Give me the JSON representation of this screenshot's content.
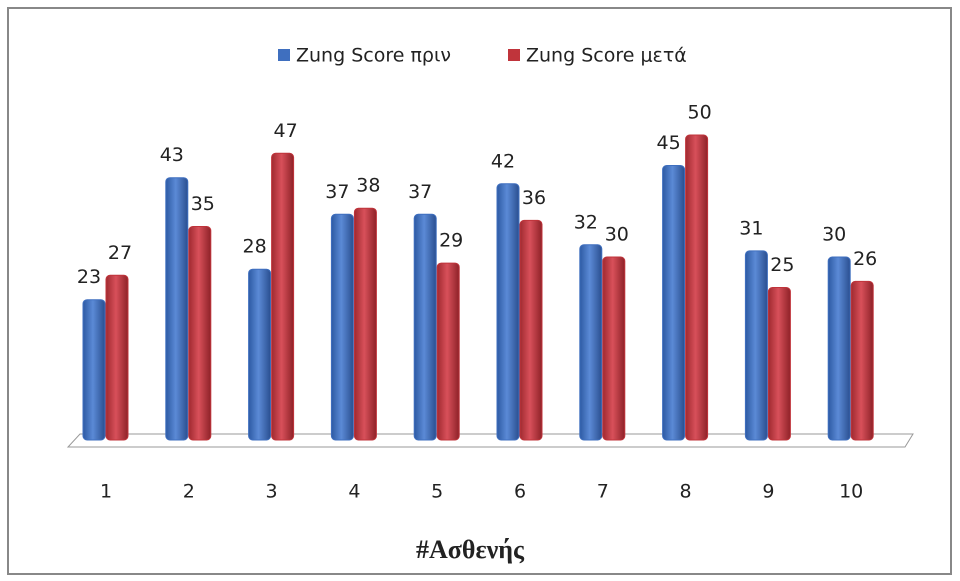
{
  "chart_data": {
    "type": "bar",
    "x_label": "#Ασθενής",
    "categories": [
      "1",
      "2",
      "3",
      "4",
      "5",
      "6",
      "7",
      "8",
      "9",
      "10"
    ],
    "series": [
      {
        "name": "Zung Score πριν",
        "color": "#3f6fbf",
        "values": [
          23,
          43,
          28,
          37,
          37,
          42,
          32,
          45,
          31,
          30
        ]
      },
      {
        "name": "Zung Score μετά",
        "color": "#c0343b",
        "values": [
          27,
          35,
          47,
          38,
          29,
          36,
          30,
          50,
          25,
          26
        ]
      }
    ],
    "legend": "top"
  }
}
